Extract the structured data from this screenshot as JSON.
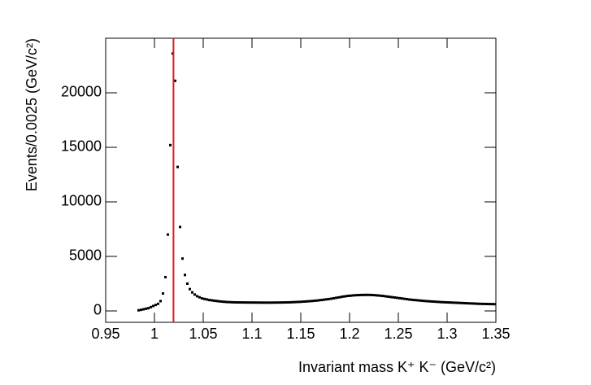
{
  "chart_data": {
    "type": "scatter",
    "x_label": "Invariant mass K⁺ K⁻ (GeV/c²)",
    "y_label": "Events/0.0025 (GeV/c²)",
    "xlim": [
      0.95,
      1.35
    ],
    "ylim": [
      -1045,
      25000
    ],
    "xticks": [
      0.95,
      1,
      1.05,
      1.1,
      1.15,
      1.2,
      1.25,
      1.3,
      1.35
    ],
    "yticks": [
      0,
      5000,
      10000,
      15000,
      20000
    ],
    "color": "#000000",
    "vline": 1.0195,
    "vline_color": "#e0191c",
    "x": [
      0.98375,
      0.98625,
      0.98875,
      0.99125,
      0.99375,
      0.99625,
      0.99875,
      1.00125,
      1.00375,
      1.00625,
      1.00875,
      1.01125,
      1.01375,
      1.01625,
      1.01875,
      1.02125,
      1.02375,
      1.02625,
      1.02875,
      1.03125,
      1.03375,
      1.03625,
      1.03875,
      1.04125,
      1.04375,
      1.04625,
      1.04875,
      1.05125,
      1.05375,
      1.05625,
      1.05875,
      1.06125,
      1.06375,
      1.06625,
      1.06875,
      1.07125,
      1.07375,
      1.07625,
      1.07875,
      1.08125,
      1.08375,
      1.08625,
      1.08875,
      1.09125,
      1.09375,
      1.09625,
      1.09875,
      1.10125,
      1.10375,
      1.10625,
      1.10875,
      1.11125,
      1.11375,
      1.11625,
      1.11875,
      1.12125,
      1.12375,
      1.12625,
      1.12875,
      1.13125,
      1.13375,
      1.13625,
      1.13875,
      1.14125,
      1.14375,
      1.14625,
      1.14875,
      1.15125,
      1.15375,
      1.15625,
      1.15875,
      1.16125,
      1.16375,
      1.16625,
      1.16875,
      1.17125,
      1.17375,
      1.17625,
      1.17875,
      1.18125,
      1.18375,
      1.18625,
      1.18875,
      1.19125,
      1.19375,
      1.19625,
      1.19875,
      1.20125,
      1.20375,
      1.20625,
      1.20875,
      1.21125,
      1.21375,
      1.21625,
      1.21875,
      1.22125,
      1.22375,
      1.22625,
      1.22875,
      1.23125,
      1.23375,
      1.23625,
      1.23875,
      1.24125,
      1.24375,
      1.24625,
      1.24875,
      1.25125,
      1.25375,
      1.25625,
      1.25875,
      1.26125,
      1.26375,
      1.26625,
      1.26875,
      1.27125,
      1.27375,
      1.27625,
      1.27875,
      1.28125,
      1.28375,
      1.28625,
      1.28875,
      1.29125,
      1.29375,
      1.29625,
      1.29875,
      1.30125,
      1.30375,
      1.30625,
      1.30875,
      1.31125,
      1.31375,
      1.31625,
      1.31875,
      1.32125,
      1.32375,
      1.32625,
      1.32875,
      1.33125,
      1.33375,
      1.33625,
      1.33875,
      1.34125,
      1.34375,
      1.34625,
      1.34875
    ],
    "values": [
      60,
      100,
      150,
      200,
      250,
      350,
      450,
      550,
      650,
      900,
      1600,
      3100,
      7000,
      15200,
      23600,
      21100,
      13200,
      7700,
      4800,
      3300,
      2500,
      2000,
      1700,
      1500,
      1350,
      1250,
      1150,
      1100,
      1050,
      1000,
      970,
      940,
      910,
      880,
      860,
      840,
      820,
      810,
      800,
      790,
      785,
      780,
      780,
      775,
      775,
      770,
      770,
      770,
      765,
      765,
      765,
      760,
      760,
      760,
      760,
      765,
      765,
      770,
      770,
      775,
      780,
      785,
      790,
      800,
      810,
      820,
      830,
      845,
      860,
      875,
      890,
      910,
      930,
      950,
      975,
      1000,
      1030,
      1060,
      1090,
      1120,
      1160,
      1200,
      1240,
      1280,
      1320,
      1350,
      1380,
      1400,
      1420,
      1440,
      1450,
      1460,
      1465,
      1470,
      1470,
      1465,
      1455,
      1440,
      1420,
      1400,
      1375,
      1350,
      1320,
      1290,
      1260,
      1230,
      1200,
      1170,
      1140,
      1110,
      1080,
      1050,
      1020,
      1000,
      980,
      960,
      940,
      920,
      900,
      885,
      870,
      855,
      840,
      825,
      810,
      800,
      790,
      780,
      770,
      760,
      750,
      740,
      730,
      720,
      710,
      700,
      690,
      680,
      670,
      660,
      650,
      645,
      640,
      635,
      630,
      625,
      620
    ]
  }
}
